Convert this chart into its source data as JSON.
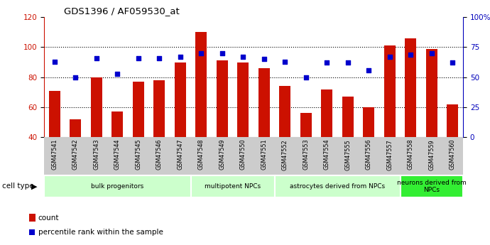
{
  "title": "GDS1396 / AF059530_at",
  "samples": [
    "GSM47541",
    "GSM47542",
    "GSM47543",
    "GSM47544",
    "GSM47545",
    "GSM47546",
    "GSM47547",
    "GSM47548",
    "GSM47549",
    "GSM47550",
    "GSM47551",
    "GSM47552",
    "GSM47553",
    "GSM47554",
    "GSM47555",
    "GSM47556",
    "GSM47557",
    "GSM47558",
    "GSM47559",
    "GSM47560"
  ],
  "counts": [
    71,
    52,
    80,
    57,
    77,
    78,
    90,
    110,
    91,
    90,
    86,
    74,
    56,
    72,
    67,
    60,
    101,
    106,
    99,
    62
  ],
  "percentiles": [
    63,
    50,
    66,
    53,
    66,
    66,
    67,
    70,
    70,
    67,
    65,
    63,
    50,
    62,
    62,
    56,
    67,
    69,
    70,
    62
  ],
  "cell_type_labels": [
    "bulk progenitors",
    "multipotent NPCs",
    "astrocytes derived from NPCs",
    "neurons derived from\nNPCs"
  ],
  "cell_type_starts": [
    0,
    7,
    11,
    17
  ],
  "cell_type_ends": [
    7,
    11,
    17,
    20
  ],
  "cell_type_colors": [
    "#ccffcc",
    "#ccffcc",
    "#ccffcc",
    "#33ee33"
  ],
  "ylim_left": [
    40,
    120
  ],
  "ylim_right": [
    0,
    100
  ],
  "yticks_left": [
    40,
    60,
    80,
    100,
    120
  ],
  "yticks_right": [
    0,
    25,
    50,
    75,
    100
  ],
  "ytick_labels_right": [
    "0",
    "25",
    "50",
    "75",
    "100%"
  ],
  "bar_color": "#cc1100",
  "dot_color": "#0000cc",
  "bg_color": "#ffffff",
  "left_tick_color": "#cc1100",
  "right_tick_color": "#0000bb",
  "xticklabel_bg": "#cccccc"
}
